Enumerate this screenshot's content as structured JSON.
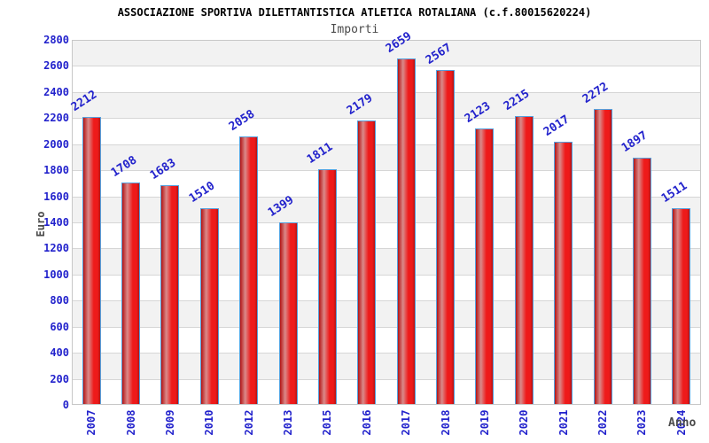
{
  "chart_data": {
    "type": "bar",
    "title": "ASSOCIAZIONE SPORTIVA DILETTANTISTICA ATLETICA ROTALIANA (c.f.80015620224)",
    "subtitle": "Importi",
    "xlabel": "Anno",
    "ylabel": "Euro",
    "categories": [
      "2007",
      "2008",
      "2009",
      "2010",
      "2012",
      "2013",
      "2015",
      "2016",
      "2017",
      "2018",
      "2019",
      "2020",
      "2021",
      "2022",
      "2023",
      "2024"
    ],
    "values": [
      2212,
      1708,
      1683,
      1510,
      2058,
      1399,
      1811,
      2179,
      2659,
      2567,
      2123,
      2215,
      2017,
      2272,
      1897,
      1511
    ],
    "ylim": [
      0,
      2800
    ],
    "ytick_step": 200,
    "yticks": [
      0,
      200,
      400,
      600,
      800,
      1000,
      1200,
      1400,
      1600,
      1800,
      2000,
      2200,
      2400,
      2600,
      2800
    ],
    "grid": true,
    "legend": "none",
    "bar_value_labels": true,
    "colors": {
      "bar_red": "#ee1a1a",
      "bar_red_dark": "#b41414",
      "bar_highlight": "#da8a8a",
      "bar_border": "#55a0dd",
      "axis_text_blue": "#2222cc",
      "band_gray": "#f2f2f2",
      "gridline": "#d6d6d6",
      "plot_border": "#c8c8c8",
      "title_black": "#000000",
      "label_gray": "#4a4a4a"
    }
  }
}
